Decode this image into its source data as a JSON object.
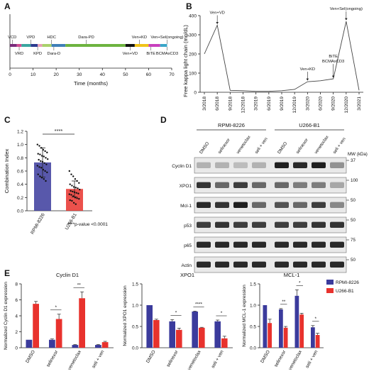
{
  "panels": {
    "A": "A",
    "B": "B",
    "C": "C",
    "D": "D",
    "E": "E"
  },
  "colors": {
    "rpmi": "#3b3b9c",
    "u266": "#e8322d",
    "grey": "#999999"
  },
  "chart_data": [
    {
      "panel": "A",
      "type": "timeline",
      "xlabel": "Time (months)",
      "ticks": [
        0,
        10,
        20,
        30,
        40,
        50,
        60,
        70
      ],
      "xlim": [
        0,
        70
      ],
      "segments": [
        {
          "start": 0,
          "end": 3,
          "color": "#7a2a7a"
        },
        {
          "start": 3,
          "end": 5,
          "color": "#d14b8f"
        },
        {
          "start": 5,
          "end": 9,
          "color": "#3aa6a0"
        },
        {
          "start": 9,
          "end": 12,
          "color": "#2b3a8f"
        },
        {
          "start": 12,
          "end": 14,
          "color": "#e79fb5"
        },
        {
          "start": 14,
          "end": 18,
          "color": "#a9d16a"
        },
        {
          "start": 18,
          "end": 24,
          "color": "#3f7fb8"
        },
        {
          "start": 24,
          "end": 50,
          "color": "#6db33f"
        },
        {
          "start": 50,
          "end": 54,
          "color": "#111111"
        },
        {
          "start": 54,
          "end": 60,
          "color": "#f0c419"
        },
        {
          "start": 60,
          "end": 65,
          "color": "#c83fbd"
        },
        {
          "start": 65,
          "end": 68,
          "color": "#3aa6c8"
        }
      ],
      "labels_above": [
        {
          "text": "VCD",
          "x": 1
        },
        {
          "text": "VPD",
          "x": 9
        },
        {
          "text": "HDC",
          "x": 18
        },
        {
          "text": "Dara-PD",
          "x": 33
        },
        {
          "text": "Ven+KD",
          "x": 56
        },
        {
          "text": "Ven+Sel(ongoing)",
          "x": 68
        }
      ],
      "labels_below": [
        {
          "text": "VRD",
          "x": 4
        },
        {
          "text": "KPD",
          "x": 12
        },
        {
          "text": "Dara-D",
          "x": 19
        },
        {
          "text": "Ven+VD",
          "x": 52
        },
        {
          "text": "BiTE",
          "x": 61
        },
        {
          "text": "BCMAxCD3",
          "x": 68
        }
      ]
    },
    {
      "panel": "B",
      "type": "line",
      "ylabel": "Free kappa light chain (mg/dL)",
      "x": [
        "3/2018",
        "6/2018",
        "9/2018",
        "12/2018",
        "3/2019",
        "6/2019",
        "9/2019",
        "12/2019",
        "3/2020",
        "6/2020",
        "9/2020",
        "12/2020",
        "3/2021"
      ],
      "values": [
        200,
        350,
        10,
        8,
        5,
        5,
        8,
        15,
        55,
        60,
        70,
        370,
        10
      ],
      "yticks": [
        0,
        100,
        200,
        300,
        400
      ],
      "ylim": [
        0,
        400
      ],
      "annotations": [
        {
          "text": "Ven+VD",
          "x": "6/2018"
        },
        {
          "text": "Ven+KD",
          "x": "3/2020"
        },
        {
          "text": "BiTE",
          "x": "9/2020",
          "line2": "BCMAxCD3"
        },
        {
          "text": "Ven+Sel(ongoing)",
          "x": "12/2020"
        }
      ]
    },
    {
      "panel": "C",
      "type": "bar",
      "ylabel": "Combination Index",
      "categories": [
        "RPMI-8226",
        "U266-B1"
      ],
      "values": [
        0.73,
        0.33
      ],
      "errors": [
        0.22,
        0.12
      ],
      "yticks": [
        0.0,
        0.2,
        0.4,
        0.6,
        0.8,
        1.0,
        1.2
      ],
      "ylim": [
        0,
        1.2
      ],
      "points": [
        [
          1.0,
          0.98,
          0.95,
          0.92,
          0.9,
          0.88,
          0.86,
          0.85,
          0.83,
          0.82,
          0.8,
          0.78,
          0.77,
          0.75,
          0.74,
          0.72,
          0.7,
          0.68,
          0.66,
          0.65,
          0.62,
          0.6,
          0.58,
          0.55,
          0.52,
          0.5,
          0.48,
          0.45
        ],
        [
          0.6,
          0.55,
          0.52,
          0.48,
          0.45,
          0.42,
          0.4,
          0.38,
          0.36,
          0.35,
          0.34,
          0.32,
          0.3,
          0.29,
          0.28,
          0.27,
          0.26,
          0.25,
          0.24,
          0.22,
          0.2,
          0.19,
          0.18,
          0.16,
          0.15,
          0.12,
          0.1
        ]
      ],
      "significance": "****",
      "footnote": "****p-value <0.0001"
    },
    {
      "panel": "E1",
      "type": "bar",
      "title": "Cyclin D1",
      "ylabel": "Normalized Cyclin D1 expression",
      "categories": [
        "DMSO",
        "selinexor",
        "venetoclax",
        "seli + ven"
      ],
      "series": [
        {
          "name": "RPMI-8226",
          "values": [
            1.0,
            1.0,
            0.35,
            0.35
          ],
          "errors": [
            0.0,
            0.1,
            0.05,
            0.05
          ]
        },
        {
          "name": "U266-B1",
          "values": [
            5.5,
            3.6,
            6.2,
            0.7
          ],
          "errors": [
            0.3,
            0.6,
            0.8,
            0.1
          ]
        }
      ],
      "yticks": [
        0,
        2,
        4,
        6,
        8
      ],
      "ylim": [
        0,
        8
      ],
      "sig": [
        {
          "idx": 1,
          "text": "*"
        },
        {
          "idx": 2,
          "text": "**"
        }
      ]
    },
    {
      "panel": "E2",
      "type": "bar",
      "title": "XPO1",
      "ylabel": "Normalized XPO1 expression",
      "categories": [
        "DMSO",
        "selinexor",
        "venetoclax",
        "seli + ven"
      ],
      "series": [
        {
          "name": "RPMI-8226",
          "values": [
            1.0,
            0.62,
            0.85,
            0.62
          ],
          "errors": [
            0.0,
            0.04,
            0.01,
            0.03
          ]
        },
        {
          "name": "U266-B1",
          "values": [
            0.65,
            0.42,
            0.47,
            0.22
          ],
          "errors": [
            0.02,
            0.04,
            0.01,
            0.05
          ]
        }
      ],
      "yticks": [
        0.0,
        0.5,
        1.0,
        1.5
      ],
      "ylim": [
        0,
        1.5
      ],
      "sig": [
        {
          "idx": 1,
          "text": "*"
        },
        {
          "idx": 2,
          "text": "****"
        },
        {
          "idx": 3,
          "text": "*"
        }
      ]
    },
    {
      "panel": "E3",
      "type": "bar",
      "title": "MCL-1",
      "ylabel": "Normalized MCL-1 expression",
      "categories": [
        "DMSO",
        "selinexor",
        "venetoclax",
        "seli + ven"
      ],
      "series": [
        {
          "name": "RPMI-8226",
          "values": [
            1.0,
            0.9,
            1.22,
            0.48
          ],
          "errors": [
            0.0,
            0.02,
            0.14,
            0.04
          ]
        },
        {
          "name": "U266-B1",
          "values": [
            0.58,
            0.47,
            0.78,
            0.3
          ],
          "errors": [
            0.09,
            0.03,
            0.03,
            0.04
          ]
        }
      ],
      "yticks": [
        0.0,
        0.5,
        1.0,
        1.5
      ],
      "ylim": [
        0,
        1.5
      ],
      "sig": [
        {
          "idx": 1,
          "text": "**"
        },
        {
          "idx": 2,
          "text": "*"
        },
        {
          "idx": 3,
          "text": "*"
        }
      ],
      "legend": [
        "RPMI-8226",
        "U266-B1"
      ]
    }
  ],
  "blot": {
    "groups": [
      "RPMI-8226",
      "U266-B1"
    ],
    "lanes": [
      "DMSO",
      "selinexor",
      "venetoclax",
      "seli + ven",
      "DMSO",
      "selinexor",
      "venetoclax",
      "seli + ven"
    ],
    "mw_label": "MW (kDa)",
    "rows": [
      {
        "name": "Cyclin D1",
        "mw": "37",
        "intensities": [
          0.25,
          0.25,
          0.2,
          0.25,
          0.95,
          0.9,
          0.95,
          0.4
        ]
      },
      {
        "name": "XPO1",
        "mw": "100",
        "intensities": [
          0.85,
          0.6,
          0.8,
          0.6,
          0.6,
          0.5,
          0.5,
          0.3
        ]
      },
      {
        "name": "Mcl-1",
        "mw": "50",
        "intensities": [
          0.9,
          0.85,
          0.95,
          0.6,
          0.7,
          0.6,
          0.8,
          0.45
        ]
      },
      {
        "name": "p53",
        "mw": "50",
        "intensities": [
          0.8,
          0.85,
          0.8,
          0.8,
          0.8,
          0.8,
          0.85,
          0.85
        ]
      },
      {
        "name": "p65",
        "mw": "75",
        "intensities": [
          0.9,
          0.9,
          0.9,
          0.9,
          0.9,
          0.9,
          0.9,
          0.9
        ]
      },
      {
        "name": "Actin",
        "mw": "50",
        "intensities": [
          0.9,
          0.9,
          0.9,
          0.9,
          0.9,
          0.9,
          0.9,
          0.9
        ]
      }
    ]
  }
}
